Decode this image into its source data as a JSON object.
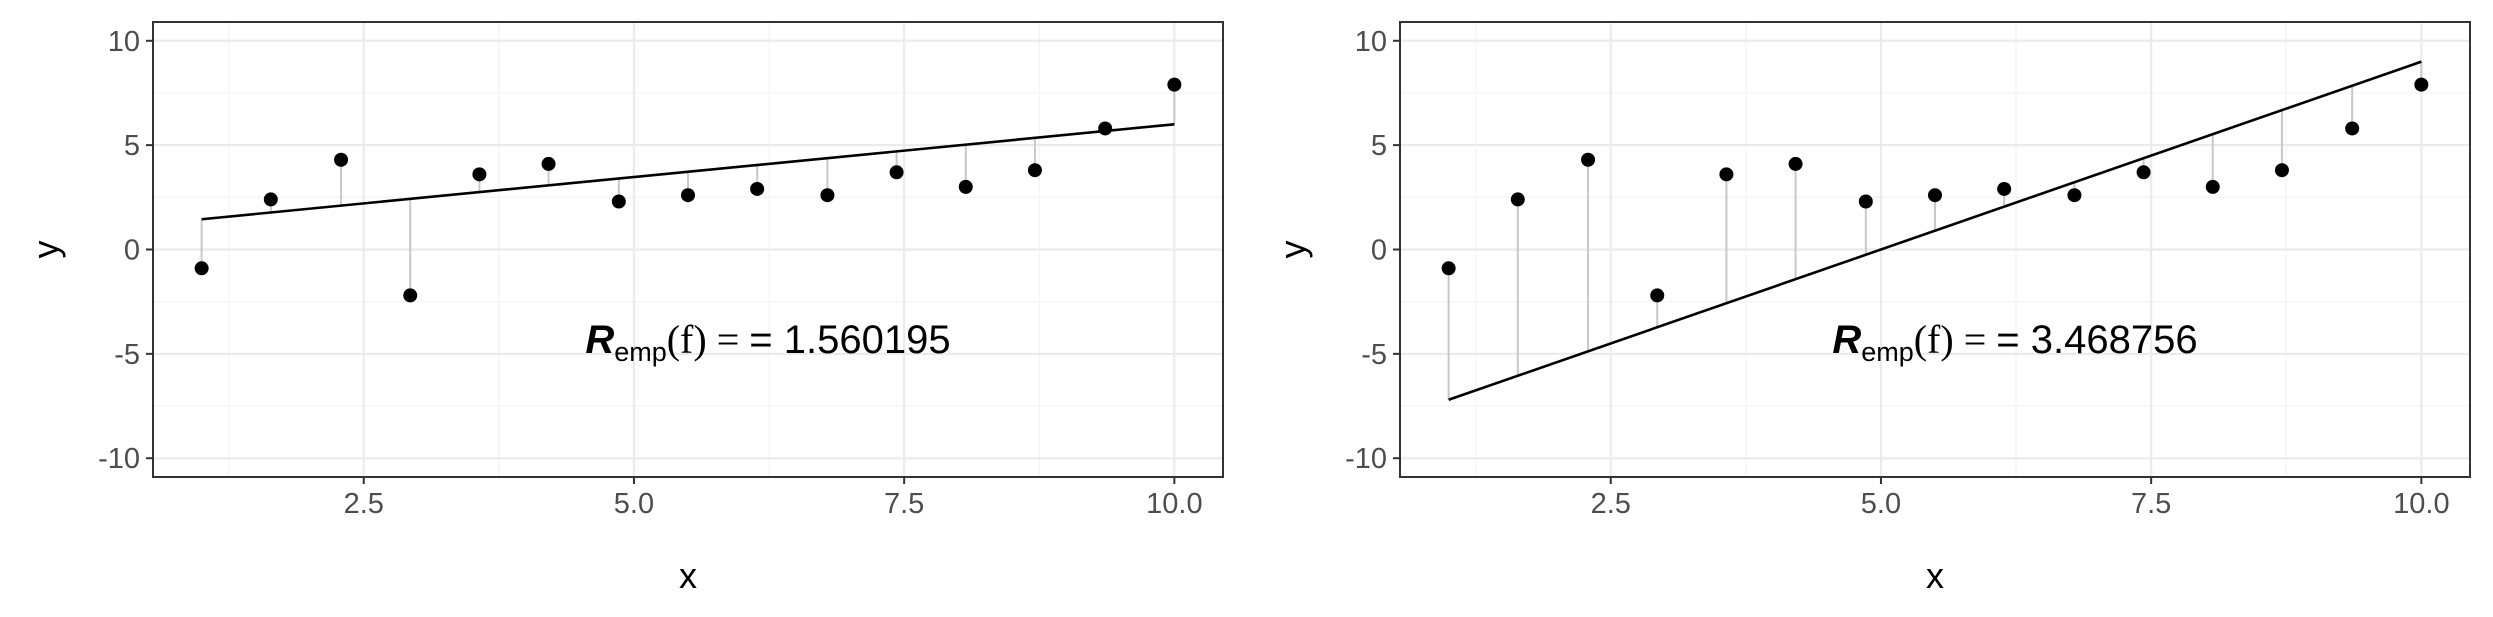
{
  "chart_data": [
    {
      "type": "scatter",
      "title": "",
      "xlabel": "x",
      "ylabel": "y",
      "xlim": [
        0.55,
        10.45
      ],
      "ylim": [
        -10.9,
        10.9
      ],
      "x_ticks": [
        2.5,
        5.0,
        7.5,
        10.0
      ],
      "x_tick_labels": [
        "2.5",
        "5.0",
        "7.5",
        "10.0"
      ],
      "y_ticks": [
        -10,
        -5,
        0,
        5,
        10
      ],
      "y_tick_labels": [
        "-10",
        "-5",
        "0",
        "5",
        "10"
      ],
      "grid": true,
      "legend": "none",
      "points": {
        "x": [
          1.0,
          1.64,
          2.29,
          2.93,
          3.57,
          4.21,
          4.86,
          5.5,
          6.14,
          6.79,
          7.43,
          8.07,
          8.71,
          9.36,
          10.0
        ],
        "y": [
          -0.9,
          2.4,
          4.3,
          -2.2,
          3.6,
          4.1,
          2.3,
          2.6,
          2.9,
          2.6,
          3.7,
          3.0,
          3.8,
          5.8,
          7.9
        ]
      },
      "fit_line": {
        "x": [
          1.0,
          10.0
        ],
        "y": [
          1.45,
          6.0
        ]
      },
      "annotation": {
        "symbol": "R",
        "subscript": "emp",
        "function": "(f) = ",
        "value": " = 1.560195"
      }
    },
    {
      "type": "scatter",
      "title": "",
      "xlabel": "x",
      "ylabel": "y",
      "xlim": [
        0.55,
        10.45
      ],
      "ylim": [
        -10.9,
        10.9
      ],
      "x_ticks": [
        2.5,
        5.0,
        7.5,
        10.0
      ],
      "x_tick_labels": [
        "2.5",
        "5.0",
        "7.5",
        "10.0"
      ],
      "y_ticks": [
        -10,
        -5,
        0,
        5,
        10
      ],
      "y_tick_labels": [
        "-10",
        "-5",
        "0",
        "5",
        "10"
      ],
      "grid": true,
      "legend": "none",
      "points": {
        "x": [
          1.0,
          1.64,
          2.29,
          2.93,
          3.57,
          4.21,
          4.86,
          5.5,
          6.14,
          6.79,
          7.43,
          8.07,
          8.71,
          9.36,
          10.0
        ],
        "y": [
          -0.9,
          2.4,
          4.3,
          -2.2,
          3.6,
          4.1,
          2.3,
          2.6,
          2.9,
          2.6,
          3.7,
          3.0,
          3.8,
          5.8,
          7.9
        ]
      },
      "fit_line": {
        "x": [
          1.0,
          10.0
        ],
        "y": [
          -7.2,
          9.0
        ]
      },
      "annotation": {
        "symbol": "R",
        "subscript": "emp",
        "function": "(f) = ",
        "value": " = 3.468756"
      }
    }
  ],
  "colors": {
    "panel_border": "#333333",
    "grid_major": "#ebebeb",
    "grid_minor": "#f5f5f5",
    "residual": "#c8c8c8",
    "point": "#000000",
    "line": "#000000",
    "tick_label": "#4d4d4d",
    "axis_title": "#000000"
  }
}
